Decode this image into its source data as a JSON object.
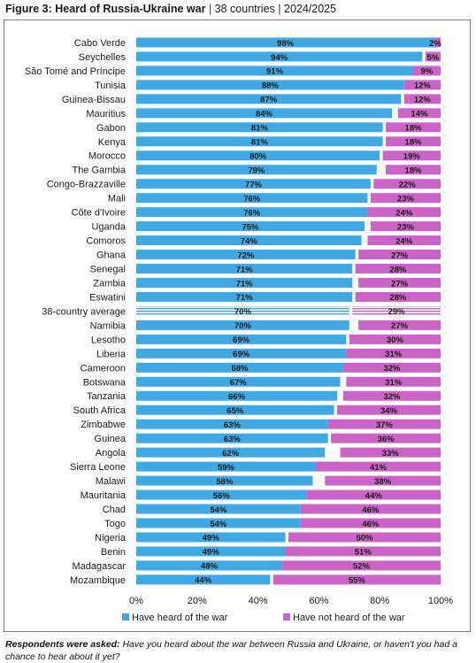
{
  "title": {
    "bold": "Figure 3: Heard of Russia-Ukraine war",
    "sep": "|",
    "scope": "38 countries",
    "sep2": "|",
    "period": "2024/2025"
  },
  "footnote": {
    "lead": "Respondents were asked:",
    "text": "Have you heard about the war between Russia and Ukraine, or haven't you had a chance to hear about it yet?"
  },
  "colors": {
    "heard": "#3fa9e6",
    "not_heard": "#cc63c7",
    "average_heard": "#a9d3f0",
    "average_not": "#e3aee0"
  },
  "chart_data": {
    "type": "bar",
    "orientation": "horizontal",
    "stacked": true,
    "categories": [
      "Cabo Verde",
      "Seychelles",
      "São Tomé and Príncipe",
      "Tunisia",
      "Guinea-Bissau",
      "Mauritius",
      "Gabon",
      "Kenya",
      "Morocco",
      "The Gambia",
      "Congo-Brazzaville",
      "Mali",
      "Côte d'Ivoire",
      "Uganda",
      "Comoros",
      "Ghana",
      "Senegal",
      "Zambia",
      "Eswatini",
      "38-country average",
      "Namibia",
      "Lesotho",
      "Liberia",
      "Cameroon",
      "Botswana",
      "Tanzania",
      "South Africa",
      "Zimbabwe",
      "Guinea",
      "Angola",
      "Sierra Leone",
      "Malawi",
      "Mauritania",
      "Chad",
      "Togo",
      "Nigeria",
      "Benin",
      "Madagascar",
      "Mozambique"
    ],
    "series": [
      {
        "name": "Have heard of the war",
        "values": [
          98,
          94,
          91,
          88,
          87,
          84,
          81,
          81,
          80,
          79,
          77,
          76,
          76,
          75,
          74,
          72,
          71,
          71,
          71,
          70,
          70,
          69,
          69,
          68,
          67,
          66,
          65,
          63,
          63,
          62,
          59,
          58,
          56,
          54,
          54,
          49,
          49,
          48,
          44
        ],
        "labels": [
          "98%",
          "94%",
          "91%",
          "88%",
          "87%",
          "84%",
          "81%",
          "81%",
          "80%",
          "79%",
          "77%",
          "76%",
          "76%",
          "75%",
          "74%",
          "72%",
          "71%",
          "71%",
          "71%",
          "70%",
          "70%",
          "69%",
          "69%",
          "68%",
          "67%",
          "66%",
          "65%",
          "63%",
          "63%",
          "62%",
          "59%",
          "58%",
          "56%",
          "54%",
          "54%",
          "49%",
          "49%",
          "48%",
          "44%"
        ]
      },
      {
        "name": "Have not heard of the war",
        "values": [
          2,
          5,
          9,
          12,
          12,
          14,
          18,
          18,
          19,
          18,
          22,
          23,
          24,
          23,
          24,
          27,
          28,
          27,
          28,
          29,
          27,
          30,
          31,
          32,
          31,
          32,
          34,
          37,
          36,
          33,
          41,
          38,
          44,
          46,
          46,
          50,
          51,
          52,
          55
        ],
        "labels": [
          "2%",
          "5%",
          "9%",
          "12%",
          "12%",
          "14%",
          "18%",
          "18%",
          "19%",
          "18%",
          "22%",
          "23%",
          "24%",
          "23%",
          "24%",
          "27%",
          "28%",
          "27%",
          "28%",
          "29%",
          "27%",
          "30%",
          "31%",
          "32%",
          "31%",
          "32%",
          "34%",
          "37%",
          "36%",
          "33%",
          "41%",
          "38%",
          "44%",
          "46%",
          "46%",
          "50%",
          "51%",
          "52%",
          "55%"
        ]
      }
    ],
    "highlight_category": "38-country average",
    "xlim": [
      0,
      100
    ],
    "xticks": [
      "0%",
      "20%",
      "40%",
      "60%",
      "80%",
      "100%"
    ],
    "legend_position": "bottom",
    "grid": false
  }
}
